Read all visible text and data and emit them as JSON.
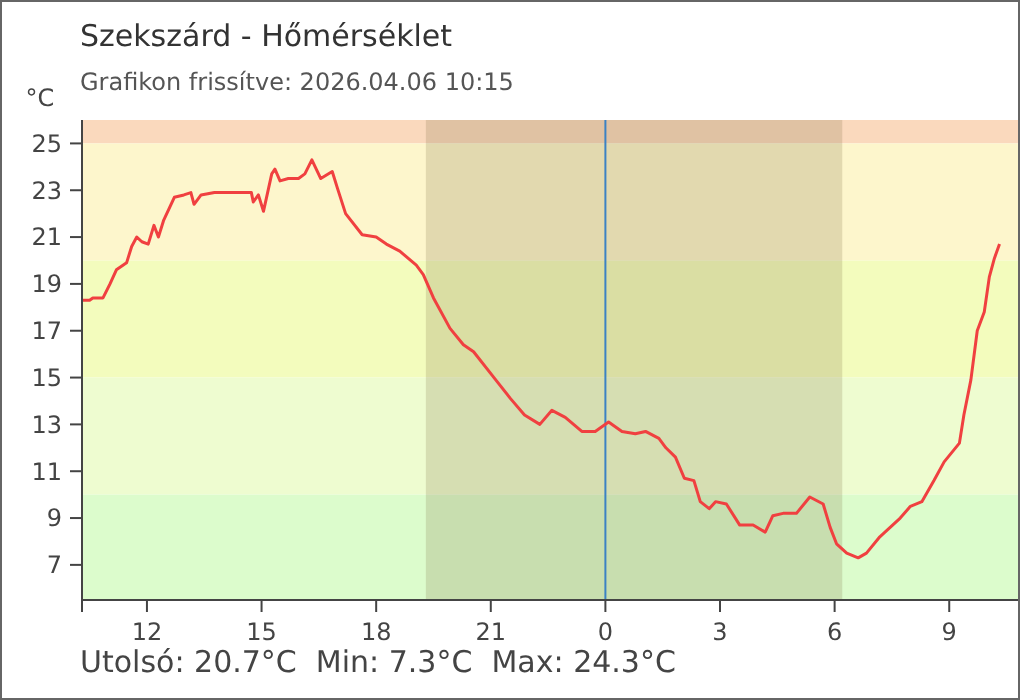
{
  "chart_data": {
    "type": "line",
    "title": "Szekszárd - Hőmérséklet",
    "subtitle": "Grafikon frissítve: 2026.04.06 10:15",
    "ylabel": "°C",
    "annotations": [
      "Utolsó: 20.7°C  Min: 7.3°C  Max: 24.3°C"
    ],
    "xlim": [
      "2026-04-05T10:18",
      "2026-04-06T10:48"
    ],
    "ylim": [
      5.5,
      26
    ],
    "xticks": [
      {
        "value": "2026-04-05T12:00",
        "label": "12"
      },
      {
        "value": "2026-04-05T15:00",
        "label": "15"
      },
      {
        "value": "2026-04-05T18:00",
        "label": "18"
      },
      {
        "value": "2026-04-05T21:00",
        "label": "21"
      },
      {
        "value": "2026-04-06T00:00",
        "label": "0"
      },
      {
        "value": "2026-04-06T03:00",
        "label": "3"
      },
      {
        "value": "2026-04-06T06:00",
        "label": "6"
      },
      {
        "value": "2026-04-06T09:00",
        "label": "9"
      }
    ],
    "yticks": [
      7,
      9,
      11,
      13,
      15,
      17,
      19,
      21,
      23,
      25
    ],
    "grid": false,
    "marker": "none",
    "line_style": "solid",
    "bands": [
      {
        "axis": "y",
        "from": 25,
        "to": 26,
        "color": "#fad9bd"
      },
      {
        "axis": "y",
        "from": 20,
        "to": 25,
        "color": "#fdf6cc"
      },
      {
        "axis": "y",
        "from": 15,
        "to": 20,
        "color": "#f3fcbd"
      },
      {
        "axis": "y",
        "from": 10,
        "to": 15,
        "color": "#eefcd0"
      },
      {
        "axis": "y",
        "from": 5.5,
        "to": 10,
        "color": "#dcfccc"
      },
      {
        "axis": "x",
        "from": "2026-04-05T19:18",
        "to": "2026-04-06T06:12",
        "color": "#7a6a3a"
      }
    ],
    "ref_lines": [
      {
        "axis": "x",
        "value": "2026-04-06T00:00",
        "color": "#3b82c4"
      }
    ],
    "series": [
      {
        "color": "#f04040",
        "x": [
          "2026-04-05T10:18",
          "2026-04-05T10:30",
          "2026-04-05T10:35",
          "2026-04-05T10:51",
          "2026-04-05T11:02",
          "2026-04-05T11:12",
          "2026-04-05T11:28",
          "2026-04-05T11:36",
          "2026-04-05T11:44",
          "2026-04-05T11:52",
          "2026-04-05T12:02",
          "2026-04-05T12:11",
          "2026-04-05T12:18",
          "2026-04-05T12:26",
          "2026-04-05T12:43",
          "2026-04-05T12:58",
          "2026-04-05T13:09",
          "2026-04-05T13:14",
          "2026-04-05T13:25",
          "2026-04-05T13:46",
          "2026-04-05T13:56",
          "2026-04-05T14:44",
          "2026-04-05T14:47",
          "2026-04-05T14:55",
          "2026-04-05T15:03",
          "2026-04-05T15:16",
          "2026-04-05T15:21",
          "2026-04-05T15:29",
          "2026-04-05T15:42",
          "2026-04-05T15:58",
          "2026-04-05T16:08",
          "2026-04-05T16:19",
          "2026-04-05T16:33",
          "2026-04-05T16:51",
          "2026-04-05T16:59",
          "2026-04-05T17:12",
          "2026-04-05T17:38",
          "2026-04-05T18:00",
          "2026-04-05T18:16",
          "2026-04-05T18:37",
          "2026-04-05T19:03",
          "2026-04-05T19:14",
          "2026-04-05T19:30",
          "2026-04-05T19:56",
          "2026-04-05T20:17",
          "2026-04-05T20:33",
          "2026-04-05T21:05",
          "2026-04-05T21:31",
          "2026-04-05T21:53",
          "2026-04-05T22:17",
          "2026-04-05T22:36",
          "2026-04-05T22:57",
          "2026-04-05T23:23",
          "2026-04-05T23:44",
          "2026-04-06T00:05",
          "2026-04-06T00:26",
          "2026-04-06T00:47",
          "2026-04-06T01:03",
          "2026-04-06T01:24",
          "2026-04-06T01:35",
          "2026-04-06T01:50",
          "2026-04-06T02:04",
          "2026-04-06T02:19",
          "2026-04-06T02:29",
          "2026-04-06T02:43",
          "2026-04-06T02:53",
          "2026-04-06T03:10",
          "2026-04-06T03:31",
          "2026-04-06T03:52",
          "2026-04-06T04:11",
          "2026-04-06T04:23",
          "2026-04-06T04:39",
          "2026-04-06T05:00",
          "2026-04-06T05:21",
          "2026-04-06T05:42",
          "2026-04-06T05:53",
          "2026-04-06T06:03",
          "2026-04-06T06:19",
          "2026-04-06T06:37",
          "2026-04-06T06:50",
          "2026-04-06T07:11",
          "2026-04-06T07:43",
          "2026-04-06T07:59",
          "2026-04-06T08:17",
          "2026-04-06T08:36",
          "2026-04-06T08:52",
          "2026-04-06T09:16",
          "2026-04-06T09:23",
          "2026-04-06T09:34",
          "2026-04-06T09:44",
          "2026-04-06T09:55",
          "2026-04-06T10:03",
          "2026-04-06T10:11",
          "2026-04-06T10:19"
        ],
        "values": [
          18.3,
          18.3,
          18.4,
          18.4,
          19.0,
          19.6,
          19.9,
          20.6,
          21.0,
          20.8,
          20.7,
          21.5,
          21.0,
          21.7,
          22.7,
          22.8,
          22.9,
          22.4,
          22.8,
          22.9,
          22.9,
          22.9,
          22.5,
          22.8,
          22.1,
          23.7,
          23.9,
          23.4,
          23.5,
          23.5,
          23.7,
          24.3,
          23.5,
          23.8,
          23.1,
          22.0,
          21.1,
          21.0,
          20.7,
          20.4,
          19.8,
          19.4,
          18.4,
          17.1,
          16.4,
          16.1,
          15.0,
          14.1,
          13.4,
          13.0,
          13.6,
          13.3,
          12.7,
          12.7,
          13.1,
          12.7,
          12.6,
          12.7,
          12.4,
          12.0,
          11.6,
          10.7,
          10.6,
          9.7,
          9.4,
          9.7,
          9.6,
          8.7,
          8.7,
          8.4,
          9.1,
          9.2,
          9.2,
          9.9,
          9.6,
          8.6,
          7.9,
          7.5,
          7.3,
          7.5,
          8.2,
          9.0,
          9.5,
          9.7,
          10.6,
          11.4,
          12.2,
          13.4,
          14.9,
          17.0,
          17.8,
          19.3,
          20.1,
          20.7
        ]
      }
    ]
  }
}
